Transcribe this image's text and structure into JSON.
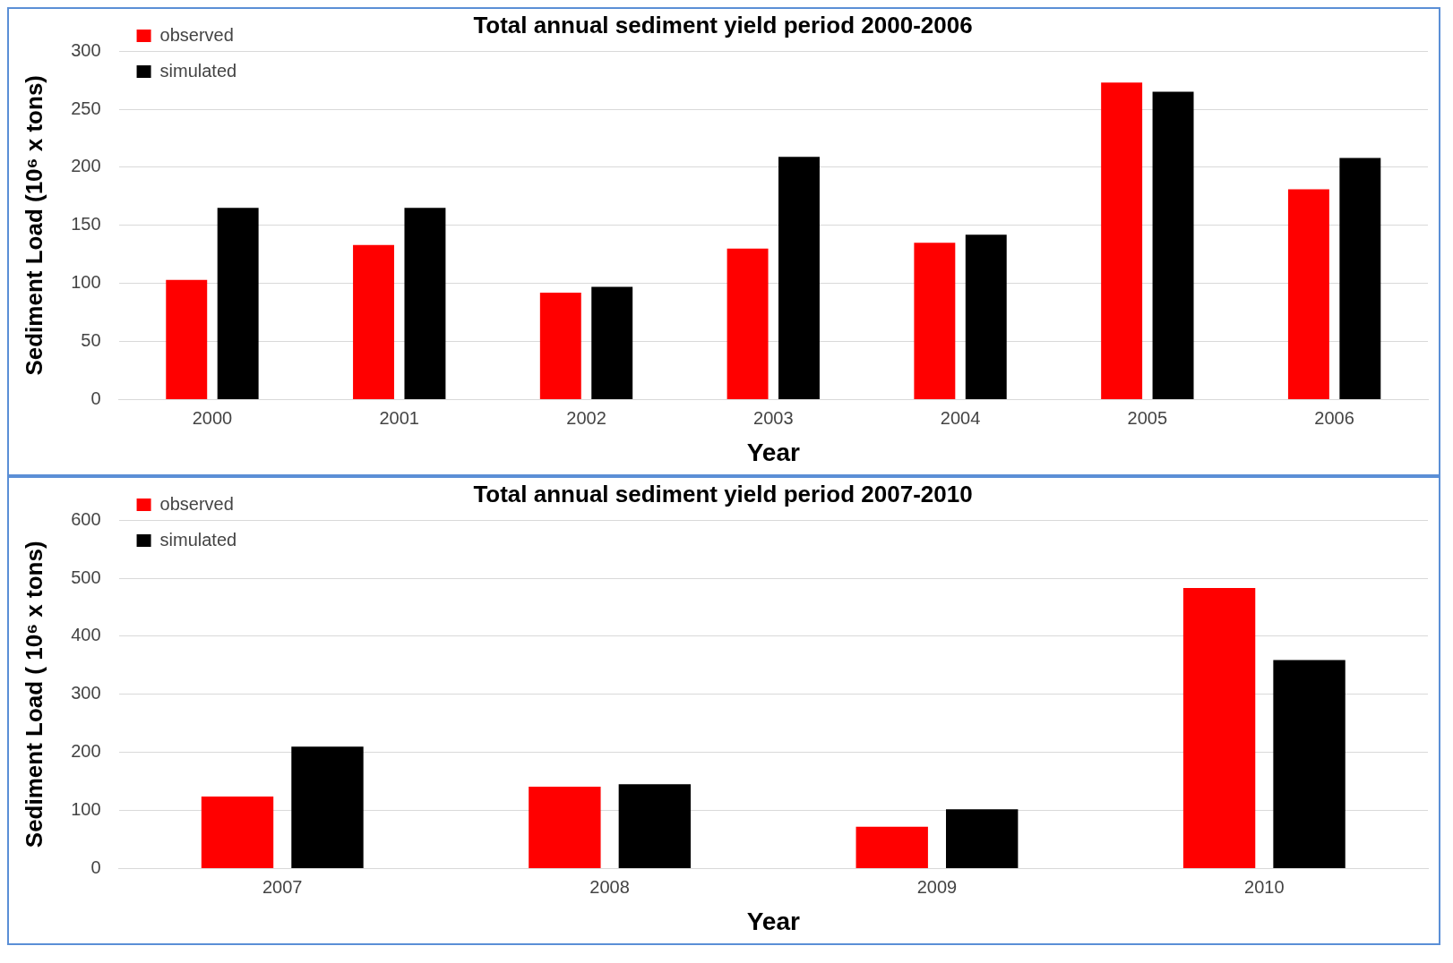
{
  "chart_data": [
    {
      "type": "bar",
      "title": "Total annual sediment yield period 2000-2006",
      "xlabel": "Year",
      "ylabel": "Sediment Load (10⁶ x tons)",
      "categories": [
        "2000",
        "2001",
        "2002",
        "2003",
        "2004",
        "2005",
        "2006"
      ],
      "series": [
        {
          "name": "observed",
          "color": "#ff0000",
          "values": [
            103,
            133,
            92,
            130,
            135,
            273,
            181
          ]
        },
        {
          "name": "simulated",
          "color": "#000000",
          "values": [
            165,
            165,
            97,
            209,
            142,
            265,
            208
          ]
        }
      ],
      "ylim": [
        0,
        300
      ],
      "yticks": [
        0,
        50,
        100,
        150,
        200,
        250,
        300
      ],
      "grid": "y",
      "legend": "top left"
    },
    {
      "type": "bar",
      "title": "Total annual sediment yield period 2007-2010",
      "xlabel": "Year",
      "ylabel": "Sediment Load ( 10⁶ x tons)",
      "categories": [
        "2007",
        "2008",
        "2009",
        "2010"
      ],
      "series": [
        {
          "name": "observed",
          "color": "#ff0000",
          "values": [
            124,
            141,
            72,
            483
          ]
        },
        {
          "name": "simulated",
          "color": "#000000",
          "values": [
            210,
            145,
            102,
            359
          ]
        }
      ],
      "ylim": [
        0,
        600
      ],
      "yticks": [
        0,
        100,
        200,
        300,
        400,
        500,
        600
      ],
      "grid": "y",
      "legend": "top left"
    }
  ]
}
